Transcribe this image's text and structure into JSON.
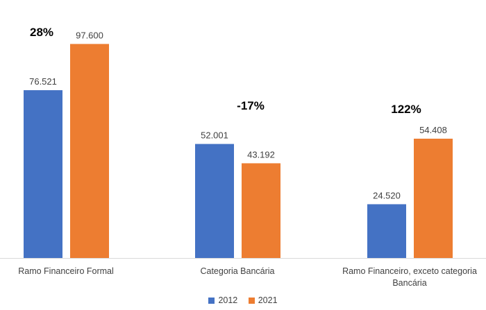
{
  "chart_data": {
    "type": "bar",
    "categories": [
      [
        "Ramo Financeiro Formal"
      ],
      [
        "Categoria Bancária"
      ],
      [
        "Ramo Financeiro, exceto categoria",
        "Bancária"
      ]
    ],
    "series": [
      {
        "name": "2012",
        "color": "#4472C4",
        "values": [
          76521,
          52001,
          24520
        ],
        "labels": [
          "76.521",
          "52.001",
          "24.520"
        ]
      },
      {
        "name": "2021",
        "color": "#ED7D31",
        "values": [
          97600,
          43192,
          54408
        ],
        "labels": [
          "97.600",
          "43.192",
          "54.408"
        ]
      }
    ],
    "annotations": [
      "28%",
      "-17%",
      "122%"
    ],
    "ylim": [
      0,
      105000
    ],
    "legend_position": "bottom",
    "grid": false
  }
}
